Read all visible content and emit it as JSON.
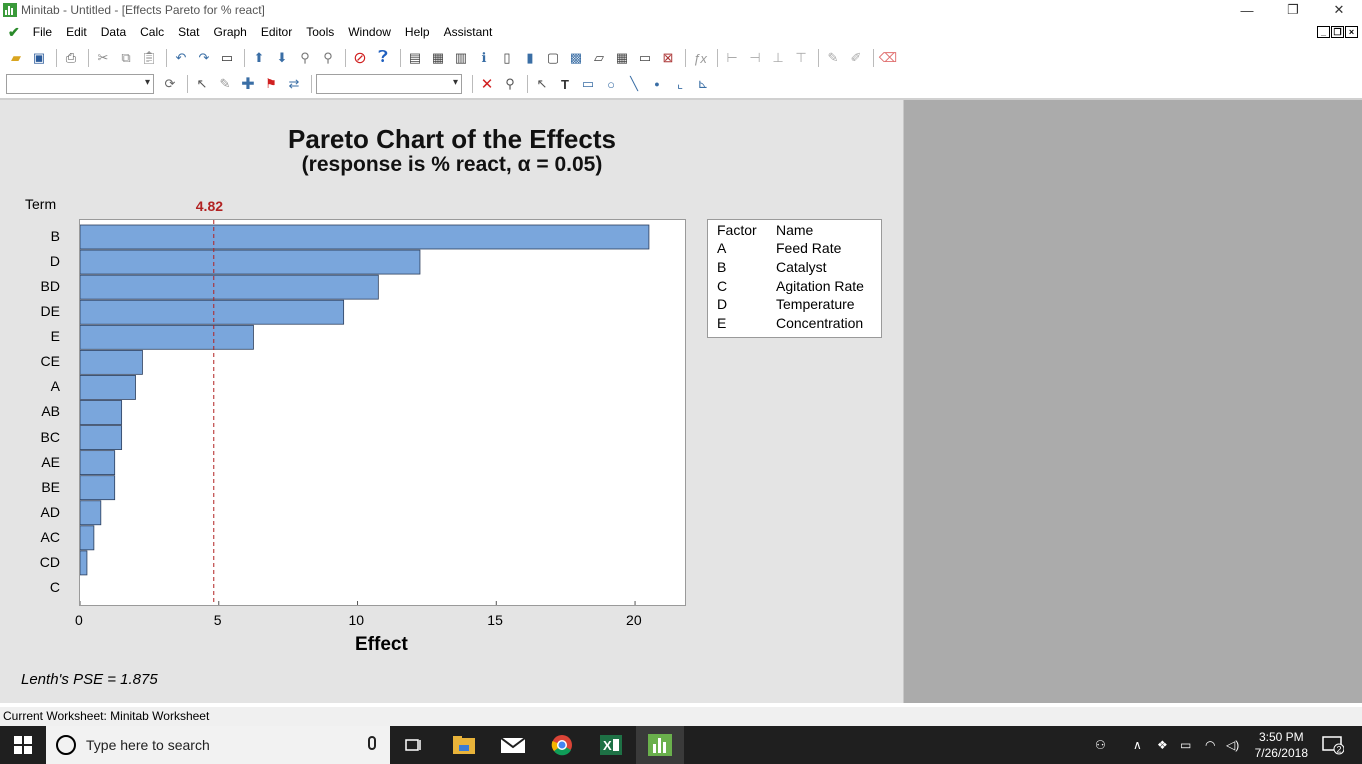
{
  "window": {
    "title": "Minitab - Untitled - [Effects Pareto for % react]",
    "minimize_glyph": "—",
    "restore_glyph": "❐",
    "close_glyph": "✕"
  },
  "menu": [
    "File",
    "Edit",
    "Data",
    "Calc",
    "Stat",
    "Graph",
    "Editor",
    "Tools",
    "Window",
    "Help",
    "Assistant"
  ],
  "graph": {
    "title": "Pareto Chart of the Effects",
    "subtitle": "(response is % react, α = 0.05)",
    "term_header": "Term",
    "critical_label": "4.82",
    "x_label": "Effect",
    "lenth": "Lenth's PSE = 1.875",
    "bar_color": "#7aa6dc",
    "critical_color": "#b22222"
  },
  "chart_data": {
    "type": "bar",
    "orientation": "horizontal",
    "title": "Pareto Chart of the Effects",
    "subtitle": "(response is % react, α = 0.05)",
    "xlabel": "Effect",
    "ylabel": "Term",
    "categories": [
      "B",
      "D",
      "BD",
      "DE",
      "E",
      "CE",
      "A",
      "AB",
      "BC",
      "AE",
      "BE",
      "AD",
      "AC",
      "CD",
      "C"
    ],
    "values": [
      20.5,
      12.25,
      10.75,
      9.5,
      6.25,
      2.25,
      2.0,
      1.5,
      1.5,
      1.25,
      1.25,
      0.75,
      0.5,
      0.25,
      0.0
    ],
    "xlim": [
      0,
      21.8
    ],
    "xticks": [
      "0",
      "5",
      "10",
      "15",
      "20"
    ],
    "reference_line": {
      "value": 4.82,
      "label": "4.82",
      "style": "dashed"
    },
    "legend": {
      "headers": [
        "Factor",
        "Name"
      ],
      "rows": [
        {
          "factor": "A",
          "name": "Feed Rate"
        },
        {
          "factor": "B",
          "name": "Catalyst"
        },
        {
          "factor": "C",
          "name": "Agitation Rate"
        },
        {
          "factor": "D",
          "name": "Temperature"
        },
        {
          "factor": "E",
          "name": "Concentration"
        }
      ],
      "placement": "right"
    }
  },
  "status": "Current Worksheet: Minitab Worksheet",
  "taskbar": {
    "search_placeholder": "Type here to search",
    "time": "3:50 PM",
    "date": "7/26/2018",
    "notification_count": "2"
  }
}
